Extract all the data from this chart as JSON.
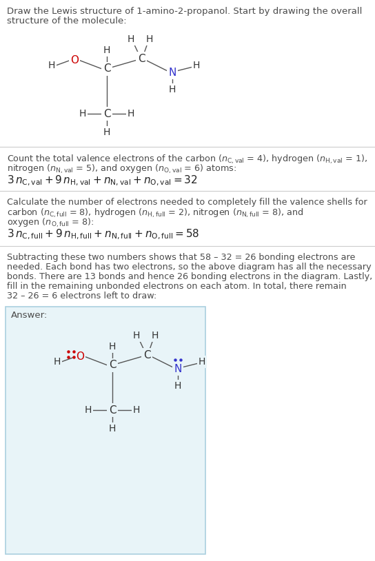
{
  "title_line1": "Draw the Lewis structure of 1-amino-2-propanol. Start by drawing the overall",
  "title_line2": "structure of the molecule:",
  "s1_line1": "Count the total valence electrons of the carbon (",
  "s1_line1_math": "n_{C,val}",
  "s1_text1": "Count the total valence electrons of the carbon ($n_{\\mathrm{C,val}}$ = 4), hydrogen ($n_{\\mathrm{H,val}}$ = 1),",
  "s1_text2": "nitrogen ($n_{\\mathrm{N,val}}$ = 5), and oxygen ($n_{\\mathrm{O,val}}$ = 6) atoms:",
  "s1_eq": "$3\\,n_{\\mathrm{C,val}} + 9\\,n_{\\mathrm{H,val}} + n_{\\mathrm{N,val}} + n_{\\mathrm{O,val}} = 32$",
  "s2_text1": "Calculate the number of electrons needed to completely fill the valence shells for",
  "s2_text2": "carbon ($n_{\\mathrm{C,full}}$ = 8), hydrogen ($n_{\\mathrm{H,full}}$ = 2), nitrogen ($n_{\\mathrm{N,full}}$ = 8), and",
  "s2_text3": "oxygen ($n_{\\mathrm{O,full}}$ = 8):",
  "s2_eq": "$3\\,n_{\\mathrm{C,full}} + 9\\,n_{\\mathrm{H,full}} + n_{\\mathrm{N,full}} + n_{\\mathrm{O,full}} = 58$",
  "s3_text1": "Subtracting these two numbers shows that 58 – 32 = 26 bonding electrons are",
  "s3_text2": "needed. Each bond has two electrons, so the above diagram has all the necessary",
  "s3_text3": "bonds. There are 13 bonds and hence 26 bonding electrons in the diagram. Lastly,",
  "s3_text4": "fill in the remaining unbonded electrons on each atom. In total, there remain",
  "s3_text5": "32 – 26 = 6 electrons left to draw:",
  "answer_label": "Answer:",
  "bg_color": "#ffffff",
  "answer_bg": "#e8f4f8",
  "answer_border": "#aacfdf",
  "text_color": "#4a4a4a",
  "O_color": "#cc0000",
  "N_color": "#3333cc",
  "C_color": "#333333",
  "H_color": "#333333",
  "bond_color": "#555555",
  "sep_color": "#cccccc"
}
